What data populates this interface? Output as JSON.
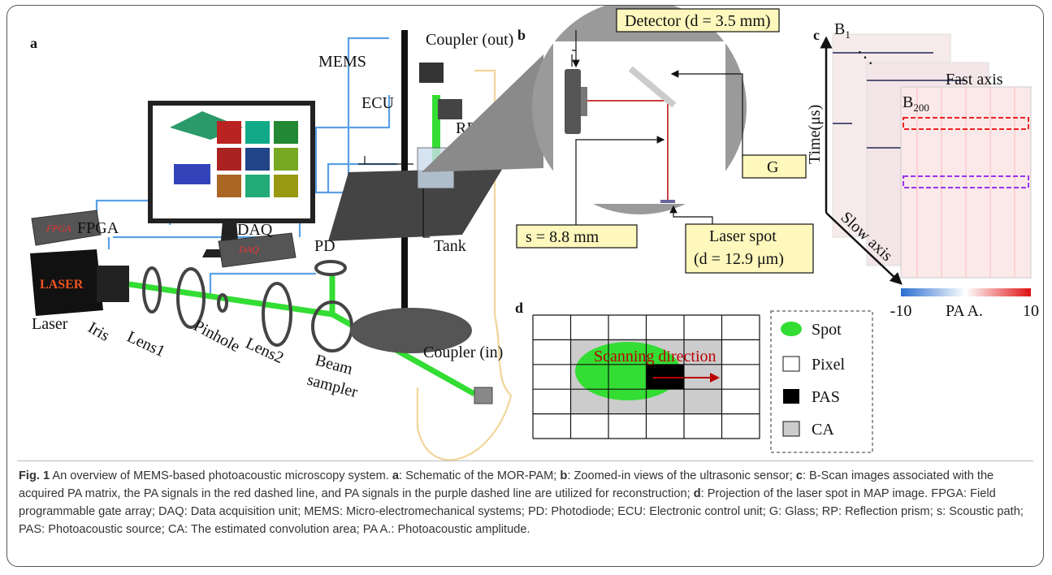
{
  "figure": {
    "panel_labels": {
      "a": "a",
      "b": "b",
      "c": "c",
      "d": "d"
    },
    "panel_a": {
      "labels": {
        "mems": "MEMS",
        "coupler_out": "Coupler (out)",
        "ecu": "ECU",
        "rp": "RP",
        "fpga": "FPGA",
        "daq": "DAQ",
        "pd": "PD",
        "tank": "Tank",
        "laser": "Laser",
        "iris": "Iris",
        "lens1": "Lens1",
        "pinhole": "Pinhole",
        "lens2": "Lens2",
        "beam_sampler_1": "Beam",
        "beam_sampler_2": "sampler",
        "coupler_in": "Coupler (in)"
      },
      "device_texts": {
        "laser": "LASER",
        "fpga": "FPGA",
        "daq": "DAQ"
      }
    },
    "panel_b": {
      "detector": "Detector (d = 3.5 mm)",
      "glass": "G",
      "path": "s = 8.8 mm",
      "spot_1": "Laser spot",
      "spot_2": "(d = 12.9 μm)"
    },
    "panel_c": {
      "first_scan": {
        "base": "B",
        "sub": "1"
      },
      "last_scan": {
        "base": "B",
        "sub": "200"
      },
      "ellipsis": "⋱",
      "fast_axis": "Fast axis",
      "time_axis": "Time(μs)",
      "slow_axis": "Slow axis",
      "colorbar": {
        "ticks": [
          -10,
          10
        ],
        "label": "PA A."
      }
    },
    "panel_d": {
      "direction": "Scanning direction",
      "legend": [
        "Spot",
        "Pixel",
        "PAS",
        "CA"
      ]
    },
    "caption": {
      "parts": [
        {
          "text": "Fig. 1",
          "bold": true
        },
        {
          "text": " An overview of MEMS-based photoacoustic microscopy system. ",
          "bold": false
        },
        {
          "text": "a",
          "bold": true
        },
        {
          "text": ": Schematic of the MOR-PAM; ",
          "bold": false
        },
        {
          "text": "b",
          "bold": true
        },
        {
          "text": ": Zoomed-in views of the ultrasonic sensor; ",
          "bold": false
        },
        {
          "text": "c",
          "bold": true
        },
        {
          "text": ": B-Scan images associated with the acquired PA matrix, the PA signals in the red dashed line, and PA signals in the purple dashed line are utilized for reconstruction; ",
          "bold": false
        },
        {
          "text": "d",
          "bold": true
        },
        {
          "text": ": Projection of the laser spot in MAP image. FPGA: Field programmable gate array; DAQ: Data acquisition unit; MEMS: Micro-electromechanical systems; PD: Photodiode; ECU: Electronic control unit; G: Glass; RP: Reflection prism; s: Scoustic path; PAS: Photoacoustic source; CA: The estimated convolution area; PA A.: Photoacoustic amplitude.",
          "bold": false
        }
      ]
    }
  }
}
